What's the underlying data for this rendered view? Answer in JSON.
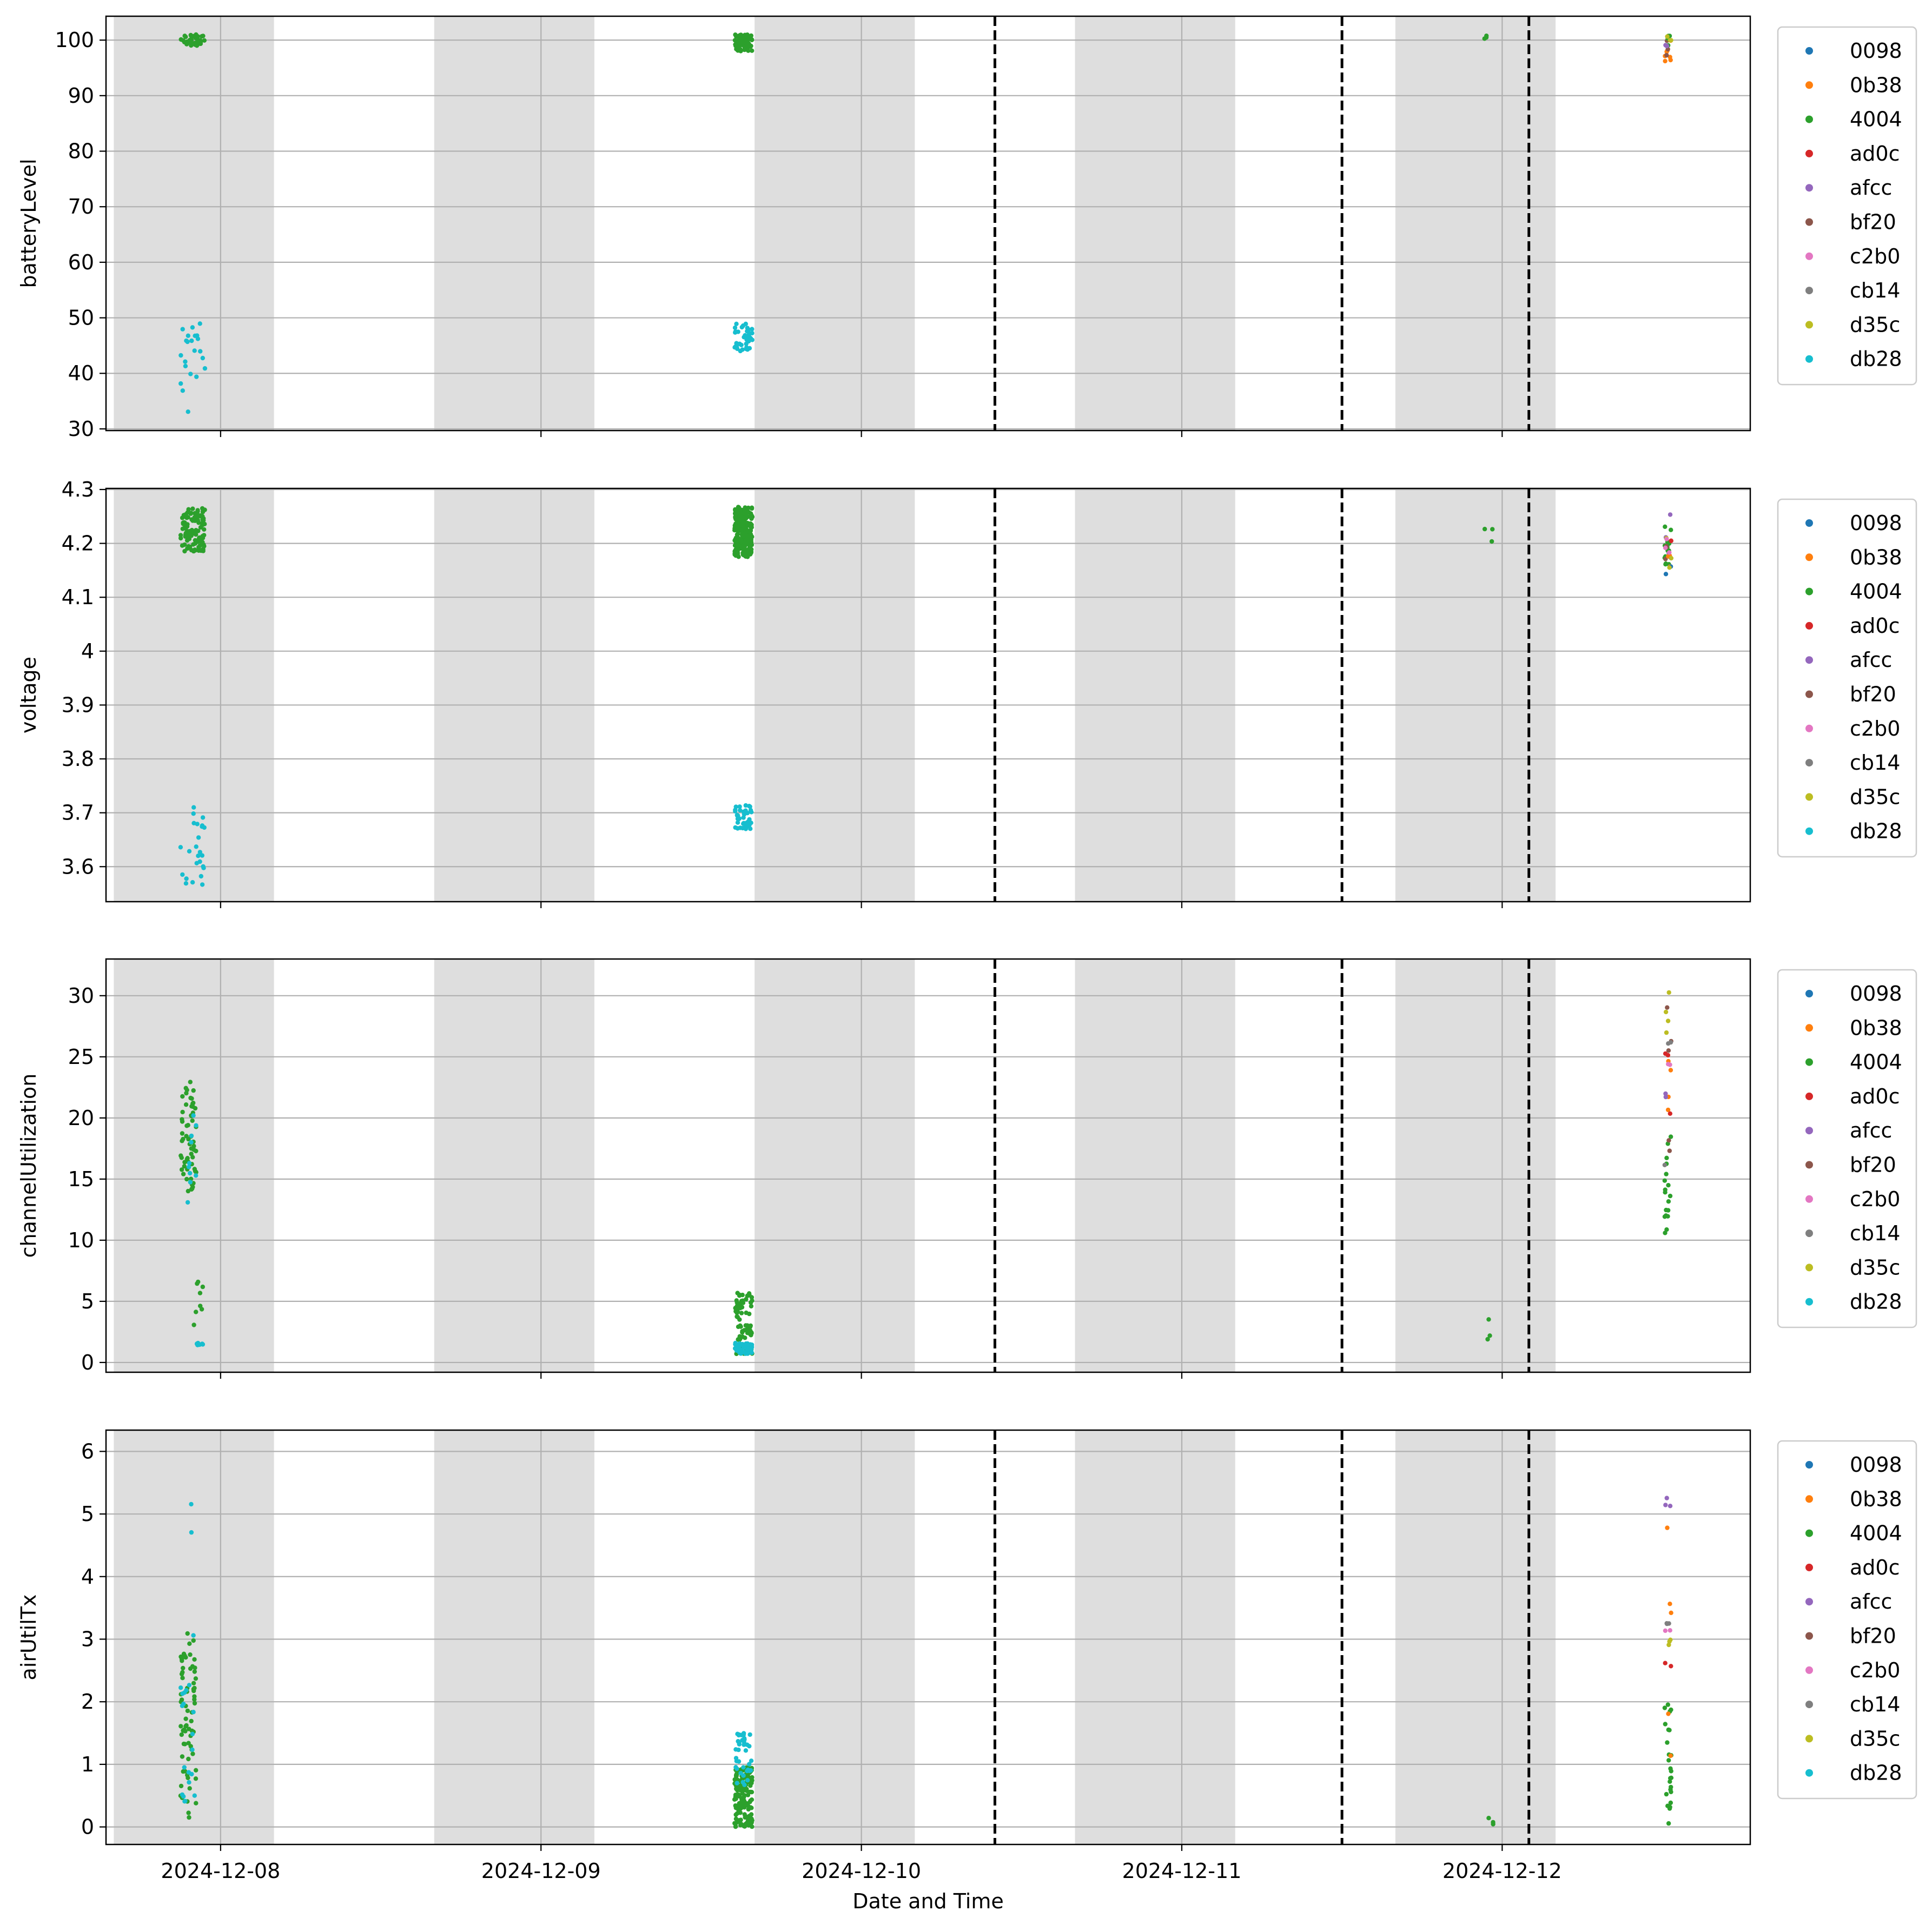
{
  "chart_data": {
    "type": "scatter",
    "xlabel": "Date and Time",
    "x_ticks": [
      "2024-12-08",
      "2024-12-09",
      "2024-12-10",
      "2024-12-11",
      "2024-12-12"
    ],
    "x_range": [
      "2024-12-07 15:25",
      "2024-12-12 18:35"
    ],
    "night_bands": [
      [
        "2024-12-07 16:00",
        "2024-12-08 04:00"
      ],
      [
        "2024-12-08 16:00",
        "2024-12-09 04:00"
      ],
      [
        "2024-12-09 16:00",
        "2024-12-10 04:00"
      ],
      [
        "2024-12-10 16:00",
        "2024-12-11 04:00"
      ],
      [
        "2024-12-11 16:00",
        "2024-12-12 04:00"
      ]
    ],
    "event_lines": [
      "2024-12-10 10:00",
      "2024-12-11 12:00",
      "2024-12-12 02:00"
    ],
    "grid": true,
    "legend_position": "right",
    "legend": [
      {
        "name": "0098",
        "color": "#1f77b4"
      },
      {
        "name": "0b38",
        "color": "#ff7f0e"
      },
      {
        "name": "4004",
        "color": "#2ca02c"
      },
      {
        "name": "ad0c",
        "color": "#d62728"
      },
      {
        "name": "afcc",
        "color": "#9467bd"
      },
      {
        "name": "bf20",
        "color": "#8c564b"
      },
      {
        "name": "c2b0",
        "color": "#e377c2"
      },
      {
        "name": "cb14",
        "color": "#7f7f7f"
      },
      {
        "name": "d35c",
        "color": "#bcbd22"
      },
      {
        "name": "db28",
        "color": "#17becf"
      }
    ],
    "panels": [
      {
        "ylabel": "batteryLevel",
        "ylim": [
          29.7,
          104.3
        ],
        "yticks": [
          30,
          40,
          50,
          60,
          70,
          80,
          90,
          100
        ],
        "clusters": [
          {
            "node": "4004",
            "t0": "2024-12-07 21:00",
            "t1": "2024-12-07 22:50",
            "y0": 99.0,
            "y1": 101.0,
            "n": 40
          },
          {
            "node": "db28",
            "t0": "2024-12-07 21:00",
            "t1": "2024-12-07 22:50",
            "y0": 33.0,
            "y1": 49.0,
            "n": 22
          },
          {
            "node": "4004",
            "t0": "2024-12-09 14:30",
            "t1": "2024-12-09 15:50",
            "y0": 98.0,
            "y1": 101.0,
            "n": 90
          },
          {
            "node": "db28",
            "t0": "2024-12-09 14:30",
            "t1": "2024-12-09 15:50",
            "y0": 44.0,
            "y1": 49.0,
            "n": 40
          },
          {
            "node": "4004",
            "t0": "2024-12-11 22:40",
            "t1": "2024-12-11 23:20",
            "y0": 100.0,
            "y1": 101.0,
            "n": 3
          },
          {
            "node": "0b38",
            "t0": "2024-12-12 12:10",
            "t1": "2024-12-12 12:40",
            "y0": 96.0,
            "y1": 101.0,
            "n": 8
          },
          {
            "node": "bf20",
            "t0": "2024-12-12 12:10",
            "t1": "2024-12-12 12:40",
            "y0": 97.0,
            "y1": 100.0,
            "n": 4
          },
          {
            "node": "4004",
            "t0": "2024-12-12 12:10",
            "t1": "2024-12-12 12:40",
            "y0": 99.0,
            "y1": 101.0,
            "n": 4
          },
          {
            "node": "afcc",
            "t0": "2024-12-12 12:10",
            "t1": "2024-12-12 12:40",
            "y0": 98.0,
            "y1": 100.0,
            "n": 3
          },
          {
            "node": "d35c",
            "t0": "2024-12-12 12:10",
            "t1": "2024-12-12 12:40",
            "y0": 99.0,
            "y1": 101.0,
            "n": 3
          }
        ]
      },
      {
        "ylabel": "voltage",
        "ylim": [
          3.535,
          4.302
        ],
        "yticks": [
          3.6,
          3.7,
          3.8,
          3.9,
          4.0,
          4.1,
          4.2,
          4.3
        ],
        "clusters": [
          {
            "node": "4004",
            "t0": "2024-12-07 21:00",
            "t1": "2024-12-07 22:50",
            "y0": 4.185,
            "y1": 4.265,
            "n": 110
          },
          {
            "node": "db28",
            "t0": "2024-12-07 21:00",
            "t1": "2024-12-07 22:50",
            "y0": 3.565,
            "y1": 3.715,
            "n": 25
          },
          {
            "node": "4004",
            "t0": "2024-12-09 14:30",
            "t1": "2024-12-09 15:50",
            "y0": 4.175,
            "y1": 4.27,
            "n": 230
          },
          {
            "node": "db28",
            "t0": "2024-12-09 14:30",
            "t1": "2024-12-09 15:50",
            "y0": 3.67,
            "y1": 3.715,
            "n": 40
          },
          {
            "node": "4004",
            "t0": "2024-12-11 22:40",
            "t1": "2024-12-11 23:20",
            "y0": 4.195,
            "y1": 4.235,
            "n": 3
          },
          {
            "node": "4004",
            "t0": "2024-12-12 12:10",
            "t1": "2024-12-12 12:40",
            "y0": 4.16,
            "y1": 4.235,
            "n": 14
          },
          {
            "node": "afcc",
            "t0": "2024-12-12 12:10",
            "t1": "2024-12-12 12:40",
            "y0": 4.17,
            "y1": 4.255,
            "n": 4
          },
          {
            "node": "bf20",
            "t0": "2024-12-12 12:10",
            "t1": "2024-12-12 12:40",
            "y0": 4.17,
            "y1": 4.2,
            "n": 3
          },
          {
            "node": "0b38",
            "t0": "2024-12-12 12:10",
            "t1": "2024-12-12 12:40",
            "y0": 4.14,
            "y1": 4.18,
            "n": 3
          },
          {
            "node": "0098",
            "t0": "2024-12-12 12:10",
            "t1": "2024-12-12 12:40",
            "y0": 4.14,
            "y1": 4.16,
            "n": 2
          },
          {
            "node": "d35c",
            "t0": "2024-12-12 12:10",
            "t1": "2024-12-12 12:40",
            "y0": 4.15,
            "y1": 4.21,
            "n": 3
          },
          {
            "node": "ad0c",
            "t0": "2024-12-12 12:10",
            "t1": "2024-12-12 12:40",
            "y0": 4.19,
            "y1": 4.21,
            "n": 2
          },
          {
            "node": "c2b0",
            "t0": "2024-12-12 12:10",
            "t1": "2024-12-12 12:40",
            "y0": 4.17,
            "y1": 4.21,
            "n": 3
          }
        ]
      },
      {
        "ylabel": "channelUtilization",
        "ylim": [
          -0.8,
          33.0
        ],
        "yticks": [
          0,
          5,
          10,
          15,
          20,
          25,
          30
        ],
        "clusters": [
          {
            "node": "4004",
            "t0": "2024-12-07 21:00",
            "t1": "2024-12-07 22:10",
            "y0": 14.0,
            "y1": 23.3,
            "n": 60
          },
          {
            "node": "db28",
            "t0": "2024-12-07 21:00",
            "t1": "2024-12-07 22:10",
            "y0": 12.5,
            "y1": 21.0,
            "n": 10
          },
          {
            "node": "4004",
            "t0": "2024-12-07 22:00",
            "t1": "2024-12-07 22:50",
            "y0": 3.0,
            "y1": 7.0,
            "n": 8
          },
          {
            "node": "db28",
            "t0": "2024-12-07 22:00",
            "t1": "2024-12-07 22:50",
            "y0": 1.4,
            "y1": 1.6,
            "n": 8
          },
          {
            "node": "4004",
            "t0": "2024-12-09 14:30",
            "t1": "2024-12-09 15:50",
            "y0": 0.7,
            "y1": 5.7,
            "n": 90
          },
          {
            "node": "db28",
            "t0": "2024-12-09 14:30",
            "t1": "2024-12-09 15:50",
            "y0": 0.7,
            "y1": 1.6,
            "n": 40
          },
          {
            "node": "4004",
            "t0": "2024-12-11 22:40",
            "t1": "2024-12-11 23:20",
            "y0": 1.8,
            "y1": 4.2,
            "n": 3
          },
          {
            "node": "4004",
            "t0": "2024-12-12 12:10",
            "t1": "2024-12-12 12:40",
            "y0": 9.0,
            "y1": 19.0,
            "n": 18
          },
          {
            "node": "bf20",
            "t0": "2024-12-12 12:10",
            "t1": "2024-12-12 12:40",
            "y0": 14.0,
            "y1": 30.0,
            "n": 5
          },
          {
            "node": "cb14",
            "t0": "2024-12-12 12:10",
            "t1": "2024-12-12 12:40",
            "y0": 15.0,
            "y1": 28.0,
            "n": 3
          },
          {
            "node": "0b38",
            "t0": "2024-12-12 12:10",
            "t1": "2024-12-12 12:40",
            "y0": 19.0,
            "y1": 25.0,
            "n": 4
          },
          {
            "node": "d35c",
            "t0": "2024-12-12 12:10",
            "t1": "2024-12-12 12:40",
            "y0": 23.0,
            "y1": 31.5,
            "n": 4
          },
          {
            "node": "ad0c",
            "t0": "2024-12-12 12:10",
            "t1": "2024-12-12 12:40",
            "y0": 20.0,
            "y1": 27.0,
            "n": 3
          },
          {
            "node": "c2b0",
            "t0": "2024-12-12 12:10",
            "t1": "2024-12-12 12:40",
            "y0": 23.0,
            "y1": 25.5,
            "n": 2
          },
          {
            "node": "afcc",
            "t0": "2024-12-12 12:10",
            "t1": "2024-12-12 12:40",
            "y0": 21.0,
            "y1": 24.0,
            "n": 2
          }
        ]
      },
      {
        "ylabel": "airUtilTx",
        "ylim": [
          -0.28,
          6.34
        ],
        "yticks": [
          0,
          1,
          2,
          3,
          4,
          5,
          6
        ],
        "clusters": [
          {
            "node": "4004",
            "t0": "2024-12-07 21:00",
            "t1": "2024-12-07 22:10",
            "y0": 0.1,
            "y1": 3.1,
            "n": 70
          },
          {
            "node": "db28",
            "t0": "2024-12-07 21:00",
            "t1": "2024-12-07 22:10",
            "y0": 0.1,
            "y1": 3.5,
            "n": 20
          },
          {
            "node": "db28",
            "t0": "2024-12-07 21:40",
            "t1": "2024-12-07 21:50",
            "y0": 4.6,
            "y1": 5.8,
            "n": 2
          },
          {
            "node": "4004",
            "t0": "2024-12-09 14:30",
            "t1": "2024-12-09 15:50",
            "y0": 0.0,
            "y1": 0.95,
            "n": 160
          },
          {
            "node": "db28",
            "t0": "2024-12-09 14:30",
            "t1": "2024-12-09 15:50",
            "y0": 0.6,
            "y1": 1.5,
            "n": 40
          },
          {
            "node": "4004",
            "t0": "2024-12-11 22:40",
            "t1": "2024-12-11 23:20",
            "y0": 0.0,
            "y1": 0.15,
            "n": 3
          },
          {
            "node": "4004",
            "t0": "2024-12-12 12:10",
            "t1": "2024-12-12 12:40",
            "y0": 0.05,
            "y1": 2.2,
            "n": 25
          },
          {
            "node": "0b38",
            "t0": "2024-12-12 12:10",
            "t1": "2024-12-12 12:40",
            "y0": 0.1,
            "y1": 6.05,
            "n": 5
          },
          {
            "node": "afcc",
            "t0": "2024-12-12 12:10",
            "t1": "2024-12-12 12:40",
            "y0": 5.1,
            "y1": 5.6,
            "n": 3
          },
          {
            "node": "cb14",
            "t0": "2024-12-12 12:10",
            "t1": "2024-12-12 12:40",
            "y0": 3.2,
            "y1": 3.4,
            "n": 3
          },
          {
            "node": "ad0c",
            "t0": "2024-12-12 12:10",
            "t1": "2024-12-12 12:40",
            "y0": 2.55,
            "y1": 2.65,
            "n": 2
          },
          {
            "node": "d35c",
            "t0": "2024-12-12 12:10",
            "t1": "2024-12-12 12:40",
            "y0": 2.9,
            "y1": 3.0,
            "n": 3
          },
          {
            "node": "c2b0",
            "t0": "2024-12-12 12:10",
            "t1": "2024-12-12 12:40",
            "y0": 3.05,
            "y1": 3.15,
            "n": 2
          }
        ]
      }
    ]
  }
}
